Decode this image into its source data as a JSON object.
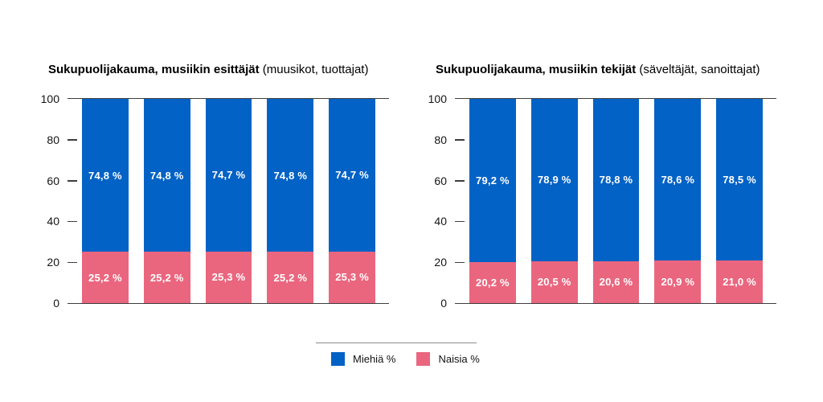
{
  "colors": {
    "men": "#0362C5",
    "women": "#EA667E",
    "axis": "#3d3d3d",
    "divider": "#8c8c8c",
    "background": "#ffffff"
  },
  "charts": [
    {
      "title_bold": "Sukupuolijakauma, musiikin esittäjät",
      "title_tail": " (muusikot, tuottajat)",
      "y_ticks": [
        0,
        20,
        40,
        60,
        80,
        100
      ],
      "bars": [
        {
          "men_label": "74,8 %",
          "women_label": "25,2 %",
          "men_value": 74.8,
          "women_value": 25.2
        },
        {
          "men_label": "74,8 %",
          "women_label": "25,2 %",
          "men_value": 74.8,
          "women_value": 25.2
        },
        {
          "men_label": "74,7 %",
          "women_label": "25,3 %",
          "men_value": 74.7,
          "women_value": 25.3
        },
        {
          "men_label": "74,8 %",
          "women_label": "25,2 %",
          "men_value": 74.8,
          "women_value": 25.2
        },
        {
          "men_label": "74,7 %",
          "women_label": "25,3 %",
          "men_value": 74.7,
          "women_value": 25.3
        }
      ]
    },
    {
      "title_bold": "Sukupuolijakauma, musiikin tekijät",
      "title_tail": " (säveltäjät, sanoittajat)",
      "y_ticks": [
        0,
        20,
        40,
        60,
        80,
        100
      ],
      "bars": [
        {
          "men_label": "79,2 %",
          "women_label": "20,2 %",
          "men_value": 79.2,
          "women_value": 20.2
        },
        {
          "men_label": "78,9 %",
          "women_label": "20,5 %",
          "men_value": 78.9,
          "women_value": 20.5
        },
        {
          "men_label": "78,8 %",
          "women_label": "20,6 %",
          "men_value": 78.8,
          "women_value": 20.6
        },
        {
          "men_label": "78,6 %",
          "women_label": "20,9 %",
          "men_value": 78.6,
          "women_value": 20.9
        },
        {
          "men_label": "78,5 %",
          "women_label": "21,0 %",
          "men_value": 78.5,
          "women_value": 21.0
        }
      ]
    }
  ],
  "legend": {
    "items": [
      {
        "label": "Miehiä %",
        "color": "#0362C5"
      },
      {
        "label": "Naisia %",
        "color": "#EA667E"
      }
    ]
  },
  "chart_data": [
    {
      "type": "bar",
      "stacked": true,
      "percent_stacked": true,
      "title": "Sukupuolijakauma, musiikin esittäjät (muusikot, tuottajat)",
      "categories": [
        "",
        "",
        "",
        "",
        ""
      ],
      "series": [
        {
          "name": "Miehiä %",
          "color": "#0362C5",
          "values": [
            74.8,
            74.8,
            74.7,
            74.8,
            74.7
          ]
        },
        {
          "name": "Naisia %",
          "color": "#EA667E",
          "values": [
            25.2,
            25.2,
            25.3,
            25.2,
            25.3
          ]
        }
      ],
      "xlabel": "",
      "ylabel": "",
      "ylim": [
        0,
        100
      ],
      "yticks": [
        0,
        20,
        40,
        60,
        80,
        100
      ],
      "grid": false,
      "legend_position": "bottom"
    },
    {
      "type": "bar",
      "stacked": true,
      "percent_stacked": true,
      "title": "Sukupuolijakauma, musiikin tekijät (säveltäjät, sanoittajat)",
      "categories": [
        "",
        "",
        "",
        "",
        ""
      ],
      "series": [
        {
          "name": "Miehiä %",
          "color": "#0362C5",
          "values": [
            79.2,
            78.9,
            78.8,
            78.6,
            78.5
          ]
        },
        {
          "name": "Naisia %",
          "color": "#EA667E",
          "values": [
            20.2,
            20.5,
            20.6,
            20.9,
            21.0
          ]
        }
      ],
      "xlabel": "",
      "ylabel": "",
      "ylim": [
        0,
        100
      ],
      "yticks": [
        0,
        20,
        40,
        60,
        80,
        100
      ],
      "grid": false,
      "legend_position": "bottom"
    }
  ]
}
